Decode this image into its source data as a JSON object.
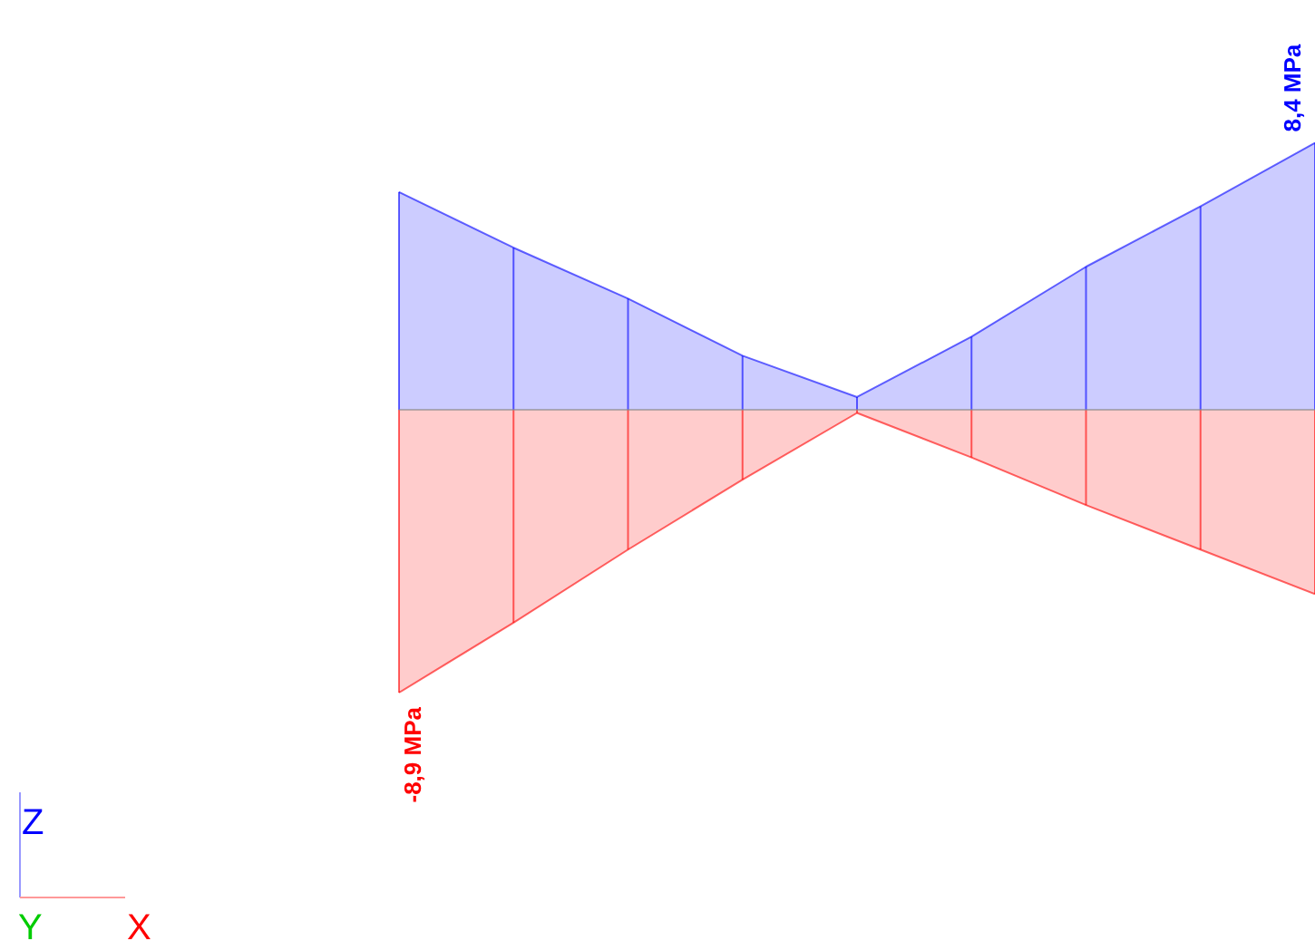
{
  "chart_data": {
    "type": "area",
    "categories": [
      null,
      null,
      null,
      null,
      null,
      null,
      null,
      null,
      null
    ],
    "series": [
      {
        "color": "#0000ff",
        "values": [
          6.85,
          5.1,
          3.5,
          1.7,
          0.4,
          2.3,
          4.5,
          6.4,
          8.4
        ],
        "value_labels": [
          null,
          null,
          null,
          null,
          null,
          null,
          null,
          null,
          "8,4 MPa"
        ]
      },
      {
        "color": "#ff0000",
        "values": [
          -8.9,
          -6.7,
          -4.4,
          -2.2,
          -0.1,
          -1.5,
          -3.0,
          -4.4,
          -5.8
        ],
        "value_labels": [
          "-8,9 MPa",
          null,
          null,
          null,
          null,
          null,
          null,
          null,
          null
        ]
      }
    ],
    "annotations": [
      "Z",
      "Y",
      "X"
    ],
    "grid": false
  }
}
